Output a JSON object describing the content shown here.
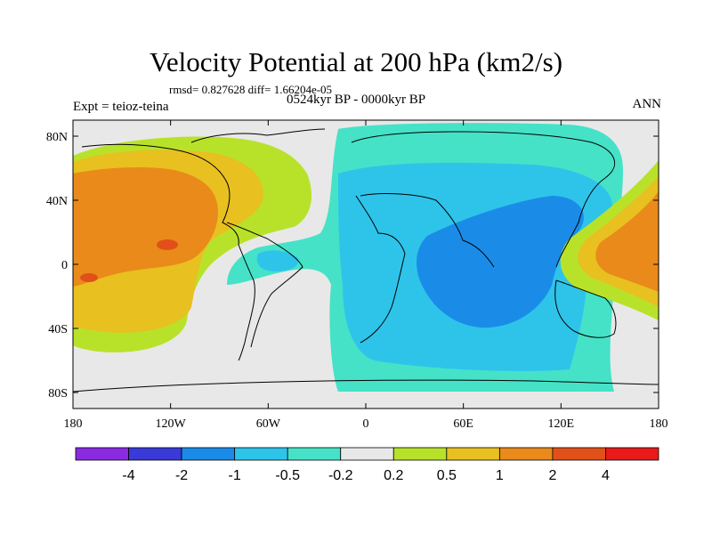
{
  "title": "Velocity Potential at 200 hPa (km2/s)",
  "stats": "rmsd= 0.827628 diff= 1.66204e-05",
  "experiment": "Expt = teioz-teina",
  "period": "0524kyr BP - 0000kyr BP",
  "season": "ANN",
  "map": {
    "projection": "cylindrical equidistant",
    "lon_range": [
      -180,
      180
    ],
    "lat_range": [
      -90,
      90
    ],
    "lon_ticks": [
      {
        "value": -180,
        "label": "180"
      },
      {
        "value": -120,
        "label": "120W"
      },
      {
        "value": -60,
        "label": "60W"
      },
      {
        "value": 0,
        "label": "0"
      },
      {
        "value": 60,
        "label": "60E"
      },
      {
        "value": 120,
        "label": "120E"
      },
      {
        "value": 180,
        "label": "180"
      }
    ],
    "lat_ticks": [
      {
        "value": 80,
        "label": "80N"
      },
      {
        "value": 40,
        "label": "40N"
      },
      {
        "value": 0,
        "label": "0"
      },
      {
        "value": -40,
        "label": "40S"
      },
      {
        "value": -80,
        "label": "80S"
      }
    ]
  },
  "colorbar": {
    "colors": [
      "#8a2be2",
      "#3a3ad8",
      "#1a8ce8",
      "#2ec4ea",
      "#45e2c8",
      "#e8e8e8",
      "#b8e22a",
      "#e8c020",
      "#e98a1a",
      "#e2501a",
      "#e81a1a"
    ],
    "labels": [
      "-4",
      "-2",
      "-1",
      "-0.5",
      "-0.2",
      "0.2",
      "0.5",
      "1",
      "2",
      "4"
    ]
  }
}
